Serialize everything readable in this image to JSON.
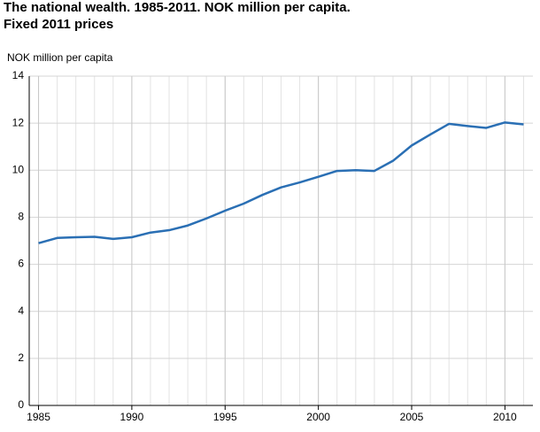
{
  "chart_data": {
    "type": "line",
    "title": "The national wealth. 1985-2011. NOK million per capita.",
    "subtitle": "Fixed 2011 prices",
    "y_label": "NOK million per capita",
    "x": [
      1985,
      1986,
      1987,
      1988,
      1989,
      1990,
      1991,
      1992,
      1993,
      1994,
      1995,
      1996,
      1997,
      1998,
      1999,
      2000,
      2001,
      2002,
      2003,
      2004,
      2005,
      2006,
      2007,
      2008,
      2009,
      2010,
      2011
    ],
    "series": [
      {
        "name": "National wealth",
        "color": "#2a6fb4",
        "values": [
          6.9,
          7.12,
          7.15,
          7.17,
          7.08,
          7.15,
          7.35,
          7.45,
          7.65,
          7.95,
          8.28,
          8.58,
          8.95,
          9.27,
          9.48,
          9.72,
          9.97,
          10.0,
          9.97,
          10.4,
          11.05,
          11.52,
          11.97,
          11.88,
          11.8,
          12.03,
          11.95
        ]
      }
    ],
    "xlim": [
      1984.5,
      2011.5
    ],
    "xticks": [
      1985,
      1990,
      1995,
      2000,
      2005,
      2010
    ],
    "ylim": [
      0,
      14
    ],
    "yticks": [
      0,
      2,
      4,
      6,
      8,
      10,
      12,
      14
    ],
    "grid": true
  }
}
